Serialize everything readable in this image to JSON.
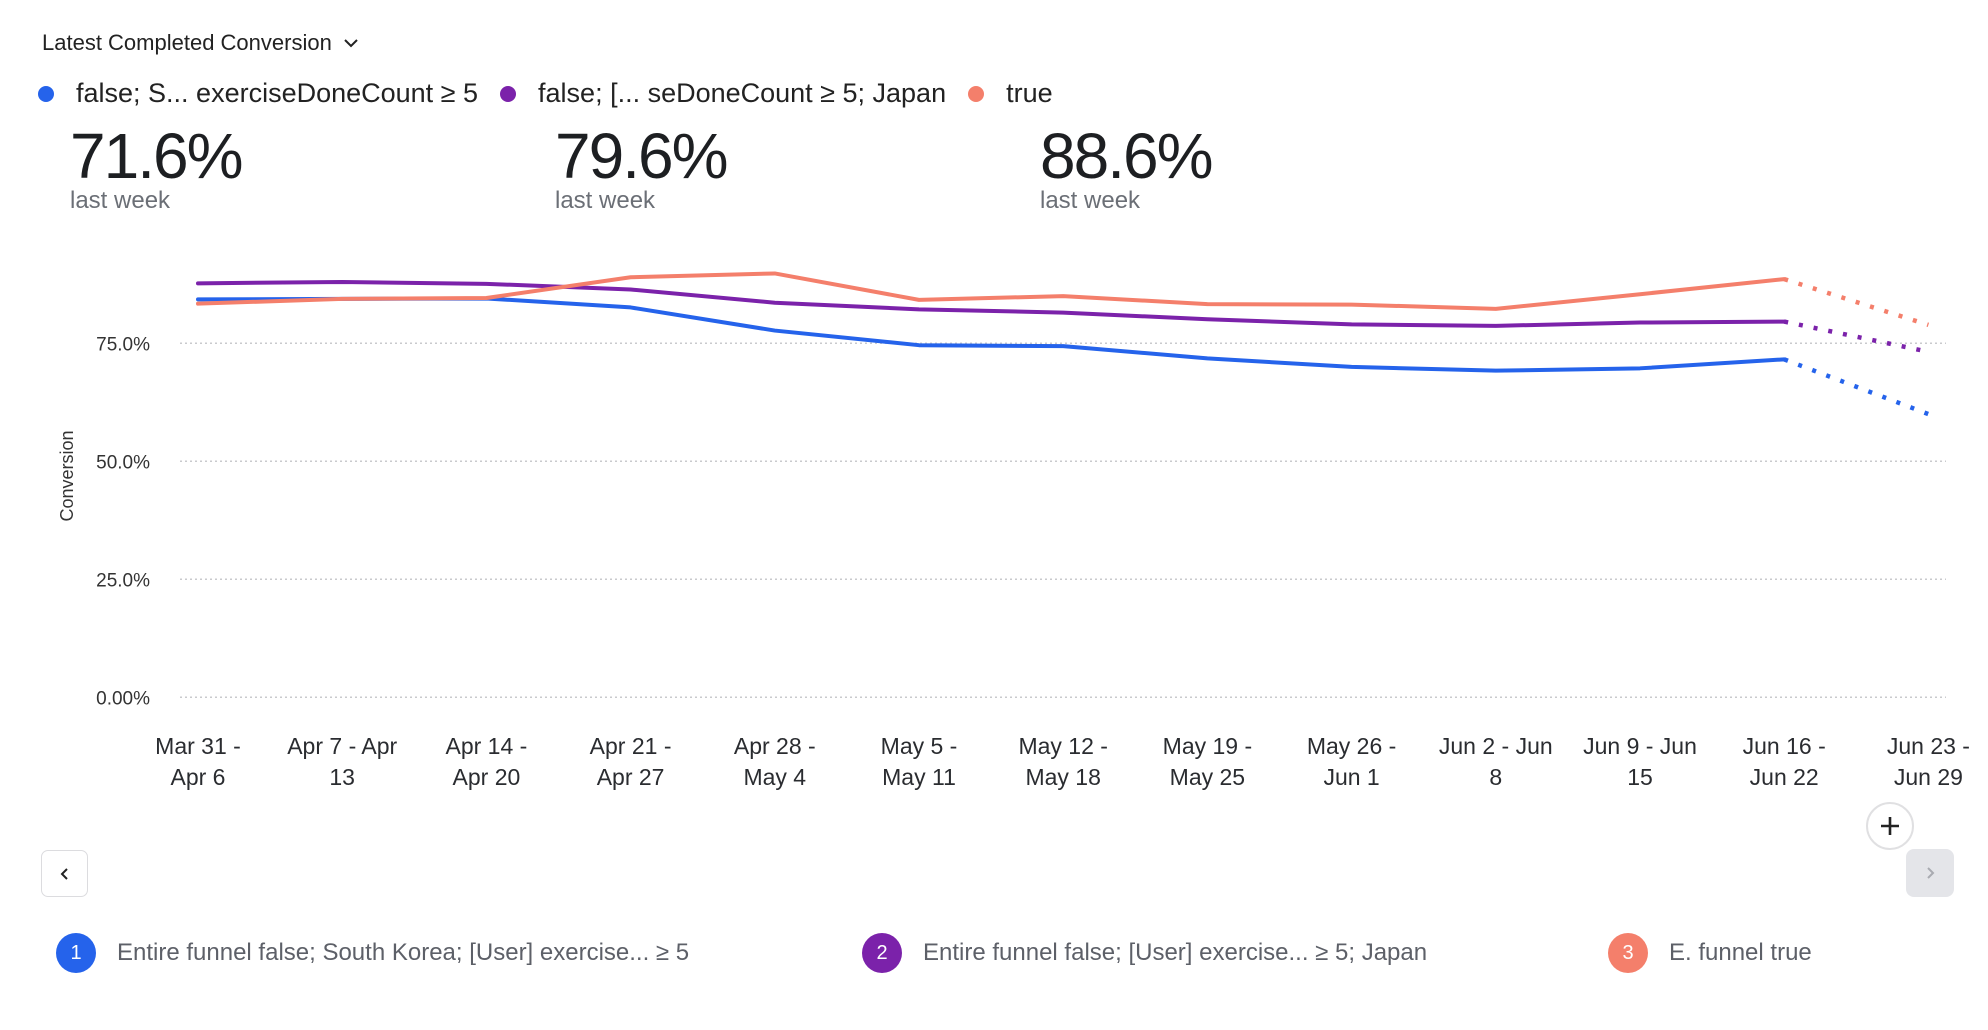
{
  "header": {
    "metric_selector_label": "Latest Completed Conversion"
  },
  "legend": [
    {
      "label": "false; S...  exerciseDoneCount ≥ 5",
      "color": "#2563eb"
    },
    {
      "label": "false; [... seDoneCount ≥ 5; Japan",
      "color": "#7b22aa"
    },
    {
      "label": "true",
      "color": "#f47f6b"
    }
  ],
  "stats": [
    {
      "value": "71.6%",
      "sub": "last week"
    },
    {
      "value": "79.6%",
      "sub": "last week"
    },
    {
      "value": "88.6%",
      "sub": "last week"
    }
  ],
  "bottom_legend": [
    {
      "index": "1",
      "label": "Entire funnel false; South Korea; [User] exercise...  ≥ 5",
      "color": "#2563eb"
    },
    {
      "index": "2",
      "label": "Entire funnel false; [User] exercise...  ≥ 5; Japan",
      "color": "#7b22aa"
    },
    {
      "index": "3",
      "label": "E. funnel true",
      "color": "#f47f6b"
    }
  ],
  "controls": {
    "prev_icon": "chevron-left-icon",
    "next_icon": "chevron-right-icon",
    "add_icon": "plus-icon"
  },
  "chart_data": {
    "type": "line",
    "title": "Latest Completed Conversion",
    "xlabel": "",
    "ylabel": "Conversion",
    "ylim": [
      0,
      100
    ],
    "yticks": [
      0,
      25,
      50,
      75
    ],
    "ytick_labels": [
      "0.00%",
      "25.0%",
      "50.0%",
      "75.0%"
    ],
    "grid": true,
    "legend_position": "top-left",
    "categories": [
      [
        "Mar 31 -",
        "Apr 6"
      ],
      [
        "Apr 7 - Apr",
        "13"
      ],
      [
        "Apr 14 -",
        "Apr 20"
      ],
      [
        "Apr 21 -",
        "Apr 27"
      ],
      [
        "Apr 28 -",
        "May 4"
      ],
      [
        "May 5 -",
        "May 11"
      ],
      [
        "May 12 -",
        "May 18"
      ],
      [
        "May 19 -",
        "May 25"
      ],
      [
        "May 26 -",
        "Jun 1"
      ],
      [
        "Jun 2 - Jun",
        "8"
      ],
      [
        "Jun 9 - Jun",
        "15"
      ],
      [
        "Jun 16 -",
        "Jun 22"
      ],
      [
        "Jun 23 -",
        "Jun 29"
      ]
    ],
    "incomplete_from_index": 11,
    "series": [
      {
        "name": "false; South Korea; [User] exerciseDoneCount ≥ 5",
        "color": "#2563eb",
        "values": [
          84.3,
          84.4,
          84.5,
          82.6,
          77.7,
          74.6,
          74.4,
          71.8,
          70.0,
          69.2,
          69.7,
          71.6,
          60.0
        ]
      },
      {
        "name": "false; [User] exerciseDoneCount ≥ 5; Japan",
        "color": "#7b22aa",
        "values": [
          87.7,
          88.0,
          87.6,
          86.4,
          83.6,
          82.2,
          81.5,
          80.1,
          79.0,
          78.7,
          79.4,
          79.6,
          73.2
        ]
      },
      {
        "name": "true",
        "color": "#f47f6b",
        "values": [
          83.4,
          84.4,
          84.6,
          89.0,
          89.8,
          84.2,
          85.0,
          83.3,
          83.2,
          82.3,
          85.4,
          88.6,
          78.9
        ]
      }
    ]
  }
}
